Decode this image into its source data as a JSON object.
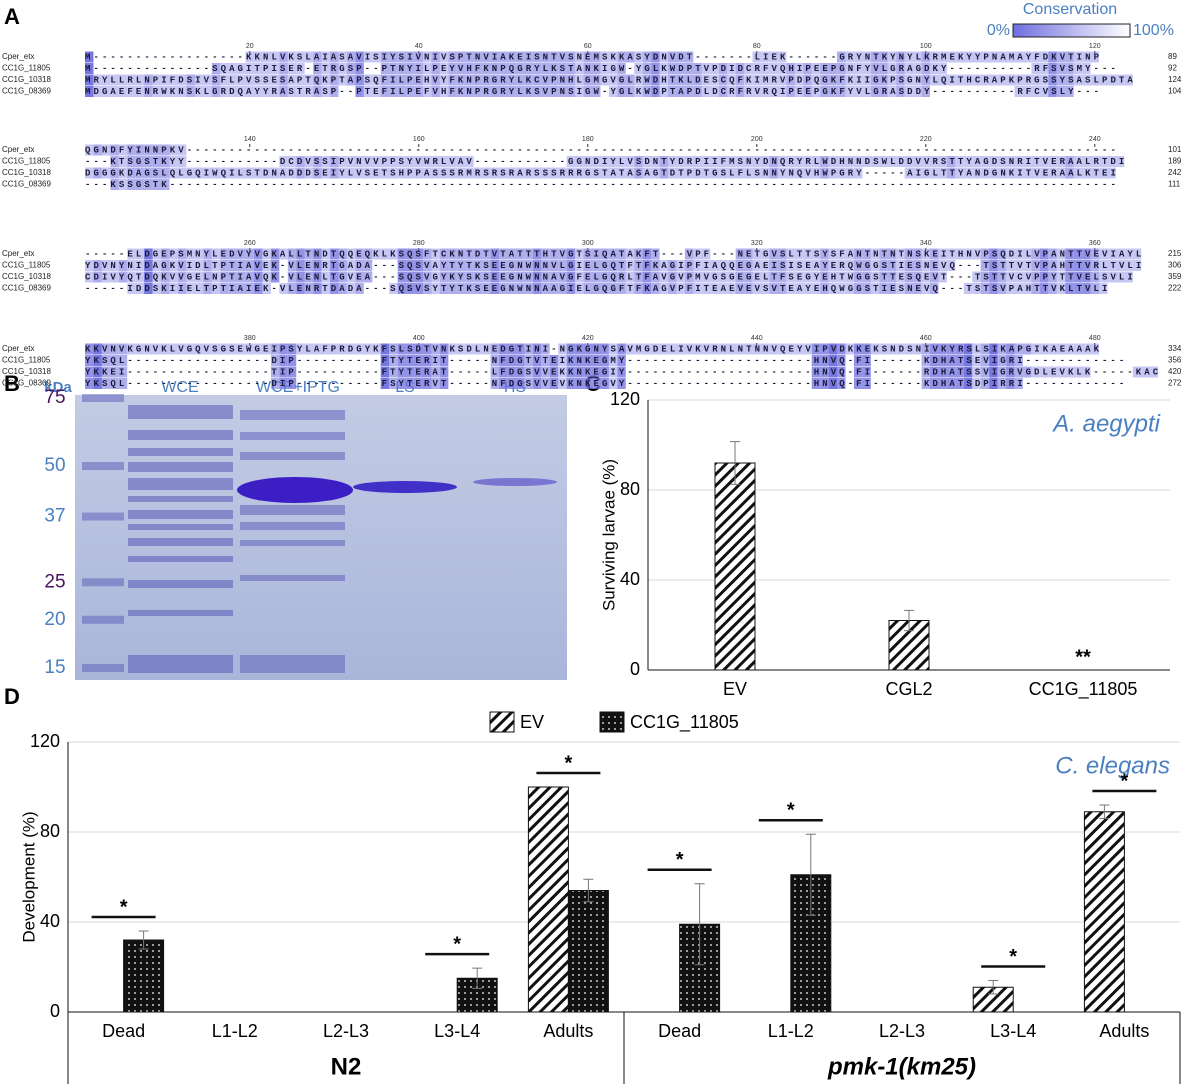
{
  "panel_labels": [
    "A",
    "B",
    "C",
    "D"
  ],
  "alignment": {
    "legend_title": "Conservation",
    "legend_min": "0%",
    "legend_max": "100%",
    "blocks": [
      {
        "ruler": [
          20,
          40,
          60,
          80,
          100,
          120
        ],
        "rows": [
          {
            "name": "Cper_etx",
            "seq": "M------------------KKNLVKSLAIASAVISIYSIVNIVSPTNVIAKEISNTVSNEMSKKASYDNVDT-------LIEK------GRYNTKYNYLKRMEKYYPNAMAYFDKVTINP",
            "end": 89
          },
          {
            "name": "CC1G_11805",
            "seq": "M--------------SQAGITPISER-ETRGSP--PTNYILPEYVHFKNPQGRYLKSTANKIGW-YGLKWDPTVPDIDCRFVQHIPEEPGNFYVLGRAGDKY----------RFSVSMY---",
            "end": 92
          },
          {
            "name": "CC1G_10318",
            "seq": "MRYLLRLNPIFDSIVSFLPVSSESAPTQKPTAPSQFILPEHVYFKNPRGRYLKCVPNHLGMGVGLRWDHTKLDESCQFKIMRVPDPQGKFKIIGKPSGNYLQITHCRAPKPRGSSYSASLPDTA",
            "end": 124
          },
          {
            "name": "CC1G_08369",
            "seq": "MDGAEFENRWKNSKLGRDQAYYRASTRASP--PTEFILPEFVHFKNPRGRYLKSVPNSIGW-YGLKWDPTAPDLDCRFRVRQIPEEPGKFYVLGRASDDY----------RFCVSLY---",
            "end": 104
          }
        ]
      },
      {
        "ruler": [
          140,
          160,
          180,
          200,
          220,
          240
        ],
        "rows": [
          {
            "name": "Cper_etx",
            "seq": "QGNDFYINNPKV--------------------------------------------------------------------------------------------------------------",
            "end": 101
          },
          {
            "name": "CC1G_11805",
            "seq": "---KTSGSTKYY-----------DCDVSSIPVNVVPPSYVWRLVAV-----------GGNDIYLVSDNTYDRPIIFMSNYDNQRYRLWDHNNDSWLDDVVRSTTYAGDSNRITVERAALRTDI",
            "end": 189
          },
          {
            "name": "CC1G_10318",
            "seq": "DGGGKDAGSLQLGQIWQILSTDNADDDSEIYLVSETSHPPASSSRMRSRSRARSSSRRRGSTATASAGTDTPDTGSLFLSNNYNQVHWPGRY-----AIGLTTYANDGNKITVERAALKTEI",
            "end": 242
          },
          {
            "name": "CC1G_08369",
            "seq": "---KSSGSTK----------------------------------------------------------------------------------------------------------------",
            "end": 111
          }
        ]
      },
      {
        "ruler": [
          260,
          280,
          300,
          320,
          340,
          360
        ],
        "rows": [
          {
            "name": "Cper_etx",
            "seq": "-----ELDGEPSMNYLEDVYVGKALLTNDTQQEQKLKSQSFTCKNTDTVTATTTHTVGTSIQATAKFT---VPF---NETGVSLTTSYSFANTNTNTNSKEITHNVPSQDILVPANTTVEVIAYL",
            "end": 215
          },
          {
            "name": "CC1G_11805",
            "seq": "YDVNYNIDAGKVIDLTPTIAVEK-VLENRTGADA---SQSVAYTYTKSEEGNWNNVLGIELGQTFTFKAGIPFIAQQEGAEISISEAYERQWGGSTIESNEVQ---TSTTVTVPAHTTVRLTVLI",
            "end": 306
          },
          {
            "name": "CC1G_10318",
            "seq": "CDIVYQTDQKVVGELNPTIAVQK-VLENLTGVEA---SQSVGYKYSKSEEGNWNNAVGFELGQRLTFAVGVPMVGSGEGELTFSEGYEHTWGGSTTESQEVT---TSTTVCVPPYTTVELSVLI",
            "end": 359
          },
          {
            "name": "CC1G_08369",
            "seq": "-----IDDSKIIELTPTIAIEK-VLENRTDADA---SQSVSYTYTKSEEGNWNNAAGIELGQGFTFKAGVPFITEAEVEVSVTEAYEHQWGGSTIESNEVQ---TSTSVPAHTTVKLTVLI",
            "end": 222
          }
        ]
      },
      {
        "ruler": [
          380,
          400,
          420,
          440,
          460,
          480
        ],
        "rows": [
          {
            "name": "Cper_etx",
            "seq": "KKVNVKGNVKLVGQVSGSEWGEIPSYLAFPRDGYKFSLSDTVNKSDLNEDGTINI-NGKGNYSAVMGDELIVKVRNLNTNNVQEYVIPVDKKEKSNDSNIVKYRSLSIKAPGIKAEAAAK",
            "end": 334
          },
          {
            "name": "CC1G_11805",
            "seq": "YKSQL-----------------DIP----------FTYTERIT-----NFDGTVTEIKNKEGMY----------------------HNVQ-FI------KDHATSEVIGRI------------",
            "end": 356
          },
          {
            "name": "CC1G_10318",
            "seq": "YKKEI-----------------TIP----------FTYTERAT-----LFDGSVVEKKNKEGIY----------------------HNVQ-FI------RDHATSSVIGRVGDLEVKLK-----KAC",
            "end": 420
          },
          {
            "name": "CC1G_08369",
            "seq": "YKSQL-----------------DIP----------FSYTERVT-----NFDGSVVEVKNKEGVY----------------------HNVQ-FI------KDHATSDPIRRI------------",
            "end": 272
          }
        ]
      }
    ]
  },
  "gel": {
    "unit": "kDa",
    "markers": [
      75,
      50,
      37,
      25,
      20,
      15
    ],
    "marker_colors": [
      "#4a1560",
      "#4a7fc1",
      "#4a7fc1",
      "#4a1560",
      "#4a7fc1",
      "#4a7fc1"
    ],
    "lanes": [
      "WCE",
      "WCE+IPTG",
      "LS",
      "HS"
    ]
  },
  "chart_data": [
    {
      "type": "bar",
      "annotation": "A. aegypti",
      "y_label": "Surviving larvae (%)",
      "categories": [
        "EV",
        "CGL2",
        "CC1G_11805"
      ],
      "values": [
        92,
        22,
        0
      ],
      "errors": [
        9.5,
        4.5,
        0
      ],
      "significance": [
        null,
        null,
        "**"
      ],
      "pattern": "hatch",
      "ylim": [
        0,
        120
      ],
      "yticks": [
        0,
        40,
        80,
        120
      ],
      "grid": true
    },
    {
      "type": "grouped_bar",
      "annotation": "C. elegans",
      "y_label": "Development (%)",
      "categories": [
        "Dead",
        "L1-L2",
        "L2-L3",
        "L3-L4",
        "Adults",
        "Dead",
        "L1-L2",
        "L2-L3",
        "L3-L4",
        "Adults"
      ],
      "groups": [
        "N2",
        "pmk-1(km25)"
      ],
      "series": [
        {
          "name": "EV",
          "pattern": "hatch",
          "values": [
            0,
            0,
            0,
            0,
            100,
            0,
            0,
            0,
            11,
            89
          ],
          "errors": [
            0,
            0,
            0,
            0,
            0,
            0,
            0,
            0,
            3,
            3
          ]
        },
        {
          "name": "CC1G_11805",
          "pattern": "dots",
          "values": [
            32,
            0,
            0,
            15,
            54,
            39,
            61,
            0,
            0,
            0
          ],
          "errors": [
            4,
            0,
            0,
            4.5,
            5,
            18,
            18,
            0,
            0,
            0
          ]
        }
      ],
      "significance": [
        "*",
        null,
        null,
        "*",
        "*",
        "*",
        "*",
        null,
        "*",
        "*"
      ],
      "ylim": [
        0,
        120
      ],
      "yticks": [
        0,
        40,
        80,
        120
      ],
      "grid": true
    }
  ]
}
